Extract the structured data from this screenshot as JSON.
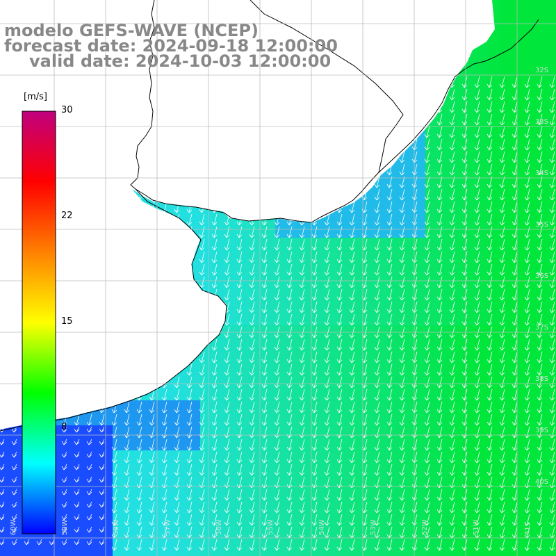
{
  "title": {
    "line1": "modelo GEFS-WAVE (NCEP)",
    "line2": "forecast date: 2024-09-18 12:00:00",
    "line3": "valid date: 2024-10-03 12:00:00"
  },
  "colorbar": {
    "unit": "[m/s]",
    "min": 0,
    "max": 30,
    "ticks": [
      "30",
      "22",
      "15",
      "8"
    ],
    "tick_values": [
      30,
      22.5,
      15,
      7.5
    ],
    "stops": [
      "#0000ff",
      "#00ffff",
      "#00ff00",
      "#ffff00",
      "#ff8000",
      "#ff0000",
      "#c0007f"
    ]
  },
  "colors": {
    "land": "#ffffff",
    "grid": "#bbbbbb",
    "coast": "#000000",
    "arrow": "#ffffff",
    "low": "#1a4dff",
    "mid": "#22e0e0",
    "high": "#00e63a"
  },
  "map": {
    "lon_labels": [
      "60W",
      "59W",
      "58W",
      "57W",
      "56W",
      "55W",
      "54W",
      "53W",
      "52W",
      "51W",
      "41S"
    ],
    "lat_labels": [
      "32S",
      "33S",
      "34S",
      "35S",
      "36S",
      "37S",
      "38S",
      "39S",
      "40S"
    ]
  }
}
